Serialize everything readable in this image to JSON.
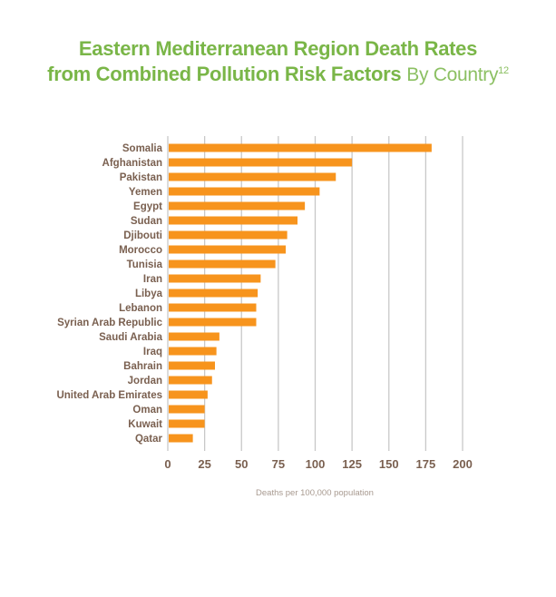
{
  "chart_data": {
    "type": "bar",
    "orientation": "horizontal",
    "title_line1": "Eastern Mediterranean Region Death Rates",
    "title_line2": "from Combined Pollution Risk Factors",
    "subtitle": "By Country",
    "subtitle_superscript": "12",
    "xlabel": "Deaths per 100,000 population",
    "ylabel": "",
    "xlim": [
      0,
      200
    ],
    "xticks": [
      "0",
      "25",
      "50",
      "75",
      "100",
      "125",
      "150",
      "175",
      "200"
    ],
    "grid": "vertical",
    "categories": [
      "Somalia",
      "Afghanistan",
      "Pakistan",
      "Yemen",
      "Egypt",
      "Sudan",
      "Djibouti",
      "Morocco",
      "Tunisia",
      "Iran",
      "Libya",
      "Lebanon",
      "Syrian Arab Republic",
      "Saudi Arabia",
      "Iraq",
      "Bahrain",
      "Jordan",
      "United Arab Emirates",
      "Oman",
      "Kuwait",
      "Qatar"
    ],
    "values": [
      179,
      125,
      114,
      103,
      93,
      88,
      81,
      80,
      73,
      63,
      61,
      60,
      60,
      35,
      33,
      32,
      30,
      27,
      25,
      25,
      17
    ],
    "colors": {
      "bar": "#f7941d",
      "grid": "#c8c8c8",
      "title": "#7ab648",
      "label": "#7a6050"
    }
  }
}
